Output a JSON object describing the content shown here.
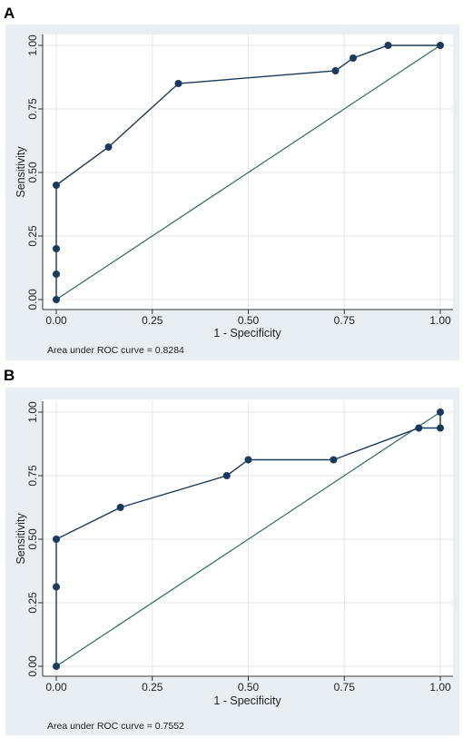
{
  "chart_data": [
    {
      "type": "line",
      "panel_label": "A",
      "xlabel": "1 - Specificity",
      "ylabel": "Sensitivity",
      "xlim": [
        0,
        1
      ],
      "ylim": [
        0,
        1
      ],
      "x_ticks": [
        "0.00",
        "0.25",
        "0.50",
        "0.75",
        "1.00"
      ],
      "y_ticks": [
        "0.00",
        "0.25",
        "0.50",
        "0.75",
        "1.00"
      ],
      "grid": true,
      "reference_line": [
        [
          0,
          0
        ],
        [
          1,
          1
        ]
      ],
      "series": [
        {
          "points": [
            [
              0,
              0
            ],
            [
              0,
              0.1
            ],
            [
              0,
              0.2
            ],
            [
              0,
              0.45
            ],
            [
              0.136,
              0.6
            ],
            [
              0.318,
              0.85
            ],
            [
              0.727,
              0.9
            ],
            [
              0.773,
              0.95
            ],
            [
              0.864,
              1.0
            ],
            [
              1.0,
              1.0
            ]
          ]
        }
      ],
      "note": "Area under ROC curve = 0.8284",
      "colors": {
        "curve": "#1a3a5c",
        "reference": "#2a6b5e",
        "plot_bg": "#ffffff",
        "outer_bg": "#e8eef2",
        "grid": "#e6e6e6"
      }
    },
    {
      "type": "line",
      "panel_label": "B",
      "xlabel": "1 - Specificity",
      "ylabel": "Sensitivity",
      "xlim": [
        0,
        1
      ],
      "ylim": [
        0,
        1
      ],
      "x_ticks": [
        "0.00",
        "0.25",
        "0.50",
        "0.75",
        "1.00"
      ],
      "y_ticks": [
        "0.00",
        "0.25",
        "0.50",
        "0.75",
        "1.00"
      ],
      "grid": true,
      "reference_line": [
        [
          0,
          0
        ],
        [
          1,
          1
        ]
      ],
      "series": [
        {
          "points": [
            [
              0,
              0
            ],
            [
              0,
              0.3125
            ],
            [
              0,
              0.5
            ],
            [
              0.167,
              0.625
            ],
            [
              0.444,
              0.75
            ],
            [
              0.5,
              0.8125
            ],
            [
              0.722,
              0.8125
            ],
            [
              0.944,
              0.9375
            ],
            [
              1.0,
              0.9375
            ],
            [
              1.0,
              1.0
            ]
          ]
        }
      ],
      "note": "Area under ROC curve = 0.7552",
      "colors": {
        "curve": "#1a3a5c",
        "reference": "#2a6b5e",
        "plot_bg": "#ffffff",
        "outer_bg": "#e8eef2",
        "grid": "#e6e6e6"
      }
    }
  ]
}
